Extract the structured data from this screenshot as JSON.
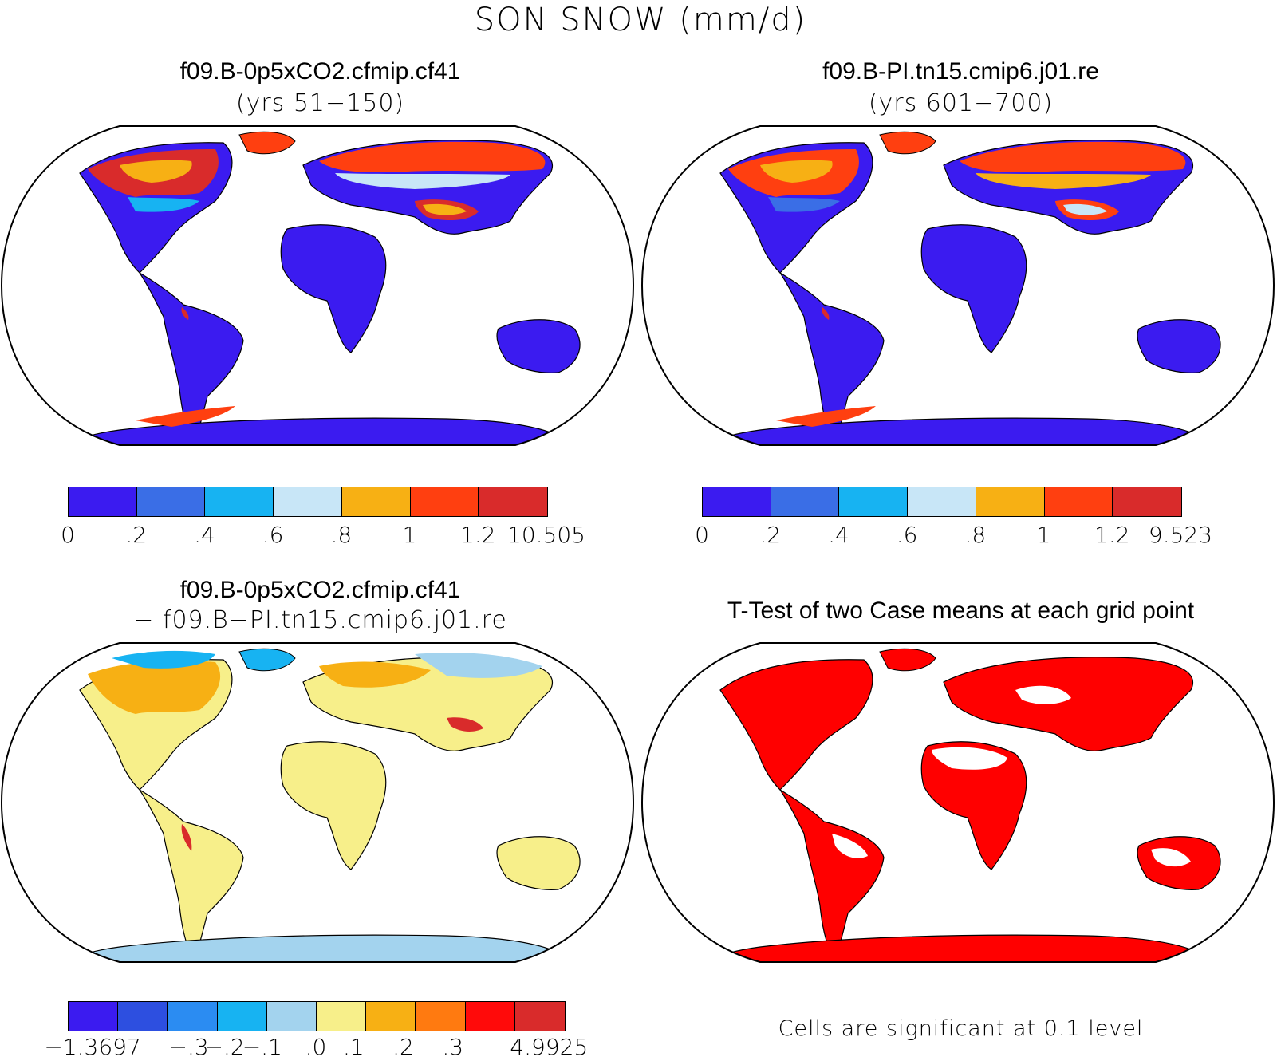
{
  "figure": {
    "title": "SON SNOW (mm/d)"
  },
  "panels": {
    "top_left": {
      "title": "f09.B-0p5xCO2.cfmip.cf41",
      "subtitle": "(yrs 51−150)",
      "colorbar": {
        "colors": [
          "#3b1bf0",
          "#3a6ee6",
          "#17b3f2",
          "#c8e6f7",
          "#f7b014",
          "#ff3f10",
          "#d92b2b"
        ],
        "labels": [
          "0",
          ".2",
          ".4",
          ".6",
          ".8",
          "1",
          "1.2",
          "10.505"
        ]
      }
    },
    "top_right": {
      "title": "f09.B-PI.tn15.cmip6.j01.re",
      "subtitle": "(yrs 601−700)",
      "colorbar": {
        "colors": [
          "#3b1bf0",
          "#3a6ee6",
          "#17b3f2",
          "#c8e6f7",
          "#f7b014",
          "#ff3f10",
          "#d92b2b"
        ],
        "labels": [
          "0",
          ".2",
          ".4",
          ".6",
          ".8",
          "1",
          "1.2",
          "9.523"
        ]
      }
    },
    "bottom_left": {
      "title": "f09.B-0p5xCO2.cfmip.cf41",
      "subtitle": "− f09.B−PI.tn15.cmip6.j01.re",
      "colorbar": {
        "colors": [
          "#3b1bf0",
          "#2d4fe0",
          "#2b8cf2",
          "#17b3f2",
          "#a3d3ee",
          "#f7ef8a",
          "#f7b014",
          "#ff7a10",
          "#ff0a0a",
          "#d92b2b"
        ],
        "labels": [
          "−1.3697",
          "−.3",
          "−.2",
          "−.1",
          ".0",
          ".1",
          ".2",
          ".3",
          "4.9925"
        ]
      }
    },
    "bottom_right": {
      "title": "T-Test of two Case means at each grid point",
      "note": "Cells are significant at 0.1 level",
      "significance_color": "#ff0000"
    }
  }
}
